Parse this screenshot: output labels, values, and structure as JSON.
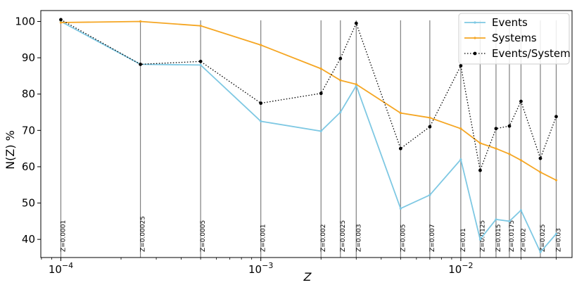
{
  "chart_data": {
    "type": "line",
    "xlabel": "Z",
    "ylabel": "N(Z) %",
    "xscale": "log",
    "xlim": [
      7.94e-05,
      0.036
    ],
    "ylim": [
      35,
      103
    ],
    "x": [
      0.0001,
      0.00025,
      0.0005,
      0.001,
      0.002,
      0.0025,
      0.003,
      0.005,
      0.007,
      0.01,
      0.0125,
      0.015,
      0.0175,
      0.02,
      0.025,
      0.03
    ],
    "vlines": [
      "Z=0.0001",
      "Z=0.00025",
      "Z=0.0005",
      "Z=0.001",
      "Z=0.002",
      "Z=0.0025",
      "Z=0.003",
      "Z=0.005",
      "Z=0.007",
      "Z=0.01",
      "Z=0.0125",
      "Z=0.015",
      "Z=0.0175",
      "Z=0.02",
      "Z=0.025",
      "Z=0.03"
    ],
    "yticks": [
      40,
      50,
      60,
      70,
      80,
      90,
      100
    ],
    "xticks": [
      {
        "value": 0.0001,
        "base": "10",
        "exp": "−4"
      },
      {
        "value": 0.001,
        "base": "10",
        "exp": "−3"
      },
      {
        "value": 0.01,
        "base": "10",
        "exp": "−2"
      }
    ],
    "legend_position": "top-right",
    "series": [
      {
        "name": "Events",
        "color": "#7ec8e3",
        "style": "solid",
        "marker": "dot-small",
        "values": [
          100,
          88.2,
          88.0,
          72.5,
          69.8,
          75.0,
          82.3,
          48.5,
          52.2,
          62.0,
          40.0,
          45.5,
          45.0,
          48.0,
          36.5,
          41.5
        ]
      },
      {
        "name": "Systems",
        "color": "#f5a623",
        "style": "solid",
        "marker": "dot-small",
        "values": [
          99.7,
          100,
          98.8,
          93.5,
          87.0,
          83.8,
          82.7,
          74.8,
          73.5,
          70.5,
          66.5,
          65.0,
          63.5,
          61.8,
          58.5,
          56.3
        ]
      },
      {
        "name": "Events/System",
        "color": "#000000",
        "style": "dotted",
        "marker": "dot",
        "values": [
          100.5,
          88.2,
          89.0,
          77.5,
          80.2,
          89.8,
          99.5,
          65.0,
          71.0,
          87.8,
          59.0,
          70.5,
          71.2,
          78.0,
          62.3,
          73.8
        ]
      }
    ]
  }
}
